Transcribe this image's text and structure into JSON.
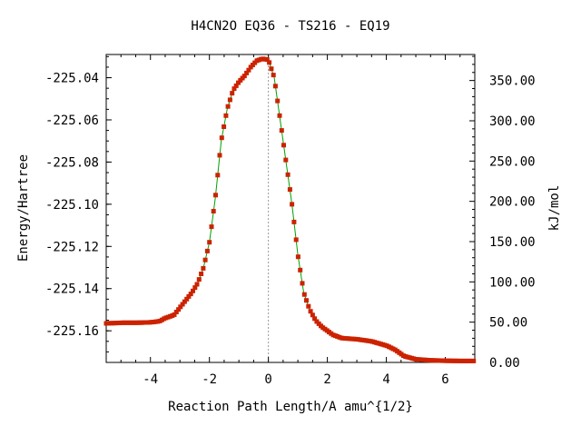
{
  "chart_data": {
    "type": "line",
    "title": "H4CN2O   EQ36 - TS216 - EQ19",
    "xlabel": "Reaction Path Length/A amu^{1/2}",
    "ylabel": "Energy/Hartree",
    "y2label": "kJ/mol",
    "xlim": [
      -5.5,
      7.0
    ],
    "ylim": [
      -225.175,
      -225.029
    ],
    "y2lim": [
      0,
      382.3
    ],
    "x_ticks": [
      -4,
      -2,
      0,
      2,
      4,
      6
    ],
    "x_tick_labels": [
      "-4",
      "-2",
      "0",
      "2",
      "4",
      "6"
    ],
    "y_ticks": [
      -225.04,
      -225.06,
      -225.08,
      -225.1,
      -225.12,
      -225.14,
      -225.16
    ],
    "y_tick_labels": [
      "-225.04",
      "-225.06",
      "-225.08",
      "-225.10",
      "-225.12",
      "-225.14",
      "-225.16"
    ],
    "y2_ticks": [
      350,
      300,
      250,
      200,
      150,
      100,
      50,
      0
    ],
    "y2_tick_labels": [
      "350.00",
      "300.00",
      "250.00",
      "200.00",
      "150.00",
      "100.00",
      "50.00",
      "0.00"
    ],
    "ts_marker_x": 0,
    "colors": {
      "line": "#00a000",
      "marker": "#cc2200",
      "ts_line": "#999999"
    },
    "series": [
      {
        "x": [
          -5.5,
          -5.0,
          -4.5,
          -4.0,
          -3.7,
          -3.5,
          -3.2,
          -3.0,
          -2.8,
          -2.6,
          -2.4,
          -2.2,
          -2.0,
          -1.8,
          -1.6,
          -1.4,
          -1.2,
          -1.0,
          -0.8,
          -0.6,
          -0.4,
          -0.2,
          0.0,
          0.2,
          0.4,
          0.6,
          0.8,
          1.0,
          1.2,
          1.4,
          1.6,
          1.8,
          2.0,
          2.2,
          2.5,
          3.0,
          3.5,
          4.0,
          4.3,
          4.6,
          5.0,
          5.5,
          6.0,
          6.5,
          7.0
        ],
        "y": [
          -225.1565,
          -225.1562,
          -225.1562,
          -225.156,
          -225.1555,
          -225.154,
          -225.1525,
          -225.149,
          -225.1455,
          -225.142,
          -225.1375,
          -225.13,
          -225.118,
          -225.097,
          -225.07,
          -225.055,
          -225.046,
          -225.042,
          -225.039,
          -225.035,
          -225.032,
          -225.031,
          -225.0315,
          -225.04,
          -225.06,
          -225.08,
          -225.1,
          -225.124,
          -225.142,
          -225.15,
          -225.155,
          -225.158,
          -225.16,
          -225.162,
          -225.1635,
          -225.164,
          -225.165,
          -225.167,
          -225.169,
          -225.172,
          -225.1735,
          -225.174,
          -225.1742,
          -225.1743,
          -225.1743
        ]
      }
    ]
  }
}
